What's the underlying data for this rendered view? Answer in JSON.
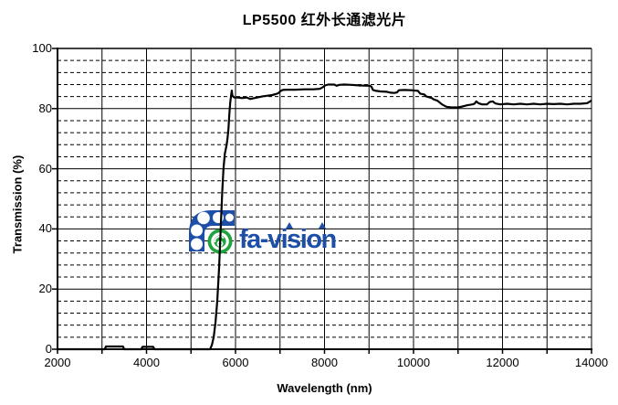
{
  "page": {
    "background": "#ffffff"
  },
  "chart_data": {
    "type": "line",
    "title": "LP5500 红外长通滤光片",
    "xlabel": "Wavelength (nm)",
    "ylabel": "Transmission (%)",
    "xlim": [
      2000,
      14000
    ],
    "ylim": [
      0,
      100
    ],
    "x_tick_labels": [
      "2000",
      "4000",
      "6000",
      "8000",
      "10000",
      "12000",
      "14000"
    ],
    "x_tick_values": [
      2000,
      4000,
      6000,
      8000,
      10000,
      12000,
      14000
    ],
    "x_minor_tick_step": 1000,
    "y_tick_labels": [
      "0",
      "20",
      "40",
      "60",
      "80",
      "100"
    ],
    "y_tick_values": [
      0,
      20,
      40,
      60,
      80,
      100
    ],
    "y_minor_step": 4,
    "grid": {
      "vertical_step": 1000,
      "horizontal_major_step": 20,
      "horizontal_minor_step": 4,
      "minor_style": "dashed",
      "color": "#000000"
    },
    "line_color": "#000000",
    "series": [
      {
        "name": "transmission",
        "points": [
          [
            2000,
            0
          ],
          [
            2500,
            0
          ],
          [
            3000,
            0
          ],
          [
            3060,
            0
          ],
          [
            3090,
            0.9
          ],
          [
            3470,
            0.9
          ],
          [
            3500,
            0
          ],
          [
            3880,
            0
          ],
          [
            3910,
            0.8
          ],
          [
            4150,
            0.8
          ],
          [
            4180,
            0
          ],
          [
            4600,
            0
          ],
          [
            5000,
            0
          ],
          [
            5300,
            0
          ],
          [
            5430,
            0
          ],
          [
            5470,
            1.5
          ],
          [
            5510,
            4
          ],
          [
            5550,
            9
          ],
          [
            5590,
            16
          ],
          [
            5630,
            27
          ],
          [
            5670,
            41
          ],
          [
            5700,
            52
          ],
          [
            5730,
            60
          ],
          [
            5760,
            65
          ],
          [
            5800,
            68
          ],
          [
            5820,
            70
          ],
          [
            5840,
            73
          ],
          [
            5860,
            78
          ],
          [
            5880,
            82
          ],
          [
            5900,
            84.2
          ],
          [
            5915,
            86
          ],
          [
            5930,
            84.3
          ],
          [
            5970,
            83.7
          ],
          [
            6050,
            83.7
          ],
          [
            6150,
            83.5
          ],
          [
            6250,
            83.7
          ],
          [
            6330,
            83.2
          ],
          [
            6420,
            83.5
          ],
          [
            6520,
            83.8
          ],
          [
            6620,
            84.1
          ],
          [
            6720,
            84.3
          ],
          [
            6820,
            84.5
          ],
          [
            6900,
            84.8
          ],
          [
            6960,
            85.1
          ],
          [
            7010,
            85.8
          ],
          [
            7060,
            86.2
          ],
          [
            7150,
            86.3
          ],
          [
            7350,
            86.3
          ],
          [
            7550,
            86.4
          ],
          [
            7750,
            86.4
          ],
          [
            7900,
            86.6
          ],
          [
            7960,
            87.1
          ],
          [
            8010,
            87.7
          ],
          [
            8080,
            88
          ],
          [
            8220,
            88
          ],
          [
            8270,
            87.6
          ],
          [
            8330,
            87.9
          ],
          [
            8450,
            88
          ],
          [
            8600,
            87.9
          ],
          [
            8800,
            87.7
          ],
          [
            9000,
            87.6
          ],
          [
            9050,
            87.4
          ],
          [
            9090,
            86.2
          ],
          [
            9160,
            85.9
          ],
          [
            9260,
            85.7
          ],
          [
            9400,
            85.6
          ],
          [
            9490,
            85.3
          ],
          [
            9570,
            85.2
          ],
          [
            9630,
            85.4
          ],
          [
            9670,
            86.1
          ],
          [
            9800,
            86.2
          ],
          [
            9950,
            86.1
          ],
          [
            10100,
            85.9
          ],
          [
            10150,
            85.0
          ],
          [
            10240,
            84.7
          ],
          [
            10290,
            84.0
          ],
          [
            10400,
            83.6
          ],
          [
            10450,
            83.1
          ],
          [
            10540,
            82.6
          ],
          [
            10640,
            81.4
          ],
          [
            10740,
            80.6
          ],
          [
            10850,
            80.4
          ],
          [
            11000,
            80.4
          ],
          [
            11100,
            80.7
          ],
          [
            11200,
            81.1
          ],
          [
            11320,
            81.4
          ],
          [
            11370,
            81.6
          ],
          [
            11410,
            82.4
          ],
          [
            11460,
            81.8
          ],
          [
            11540,
            81.4
          ],
          [
            11650,
            81.4
          ],
          [
            11710,
            82.2
          ],
          [
            11780,
            82.4
          ],
          [
            11840,
            81.7
          ],
          [
            11950,
            81.4
          ],
          [
            12100,
            81.6
          ],
          [
            12250,
            81.4
          ],
          [
            12400,
            81.6
          ],
          [
            12550,
            81.4
          ],
          [
            12700,
            81.6
          ],
          [
            12850,
            81.4
          ],
          [
            13000,
            81.6
          ],
          [
            13150,
            81.5
          ],
          [
            13300,
            81.6
          ],
          [
            13450,
            81.4
          ],
          [
            13600,
            81.6
          ],
          [
            13750,
            81.6
          ],
          [
            13900,
            81.8
          ],
          [
            14000,
            82.7
          ]
        ]
      }
    ]
  },
  "watermark": {
    "text": "fa-vision",
    "blue": "#1d4fa8",
    "green": "#1fa33c"
  }
}
